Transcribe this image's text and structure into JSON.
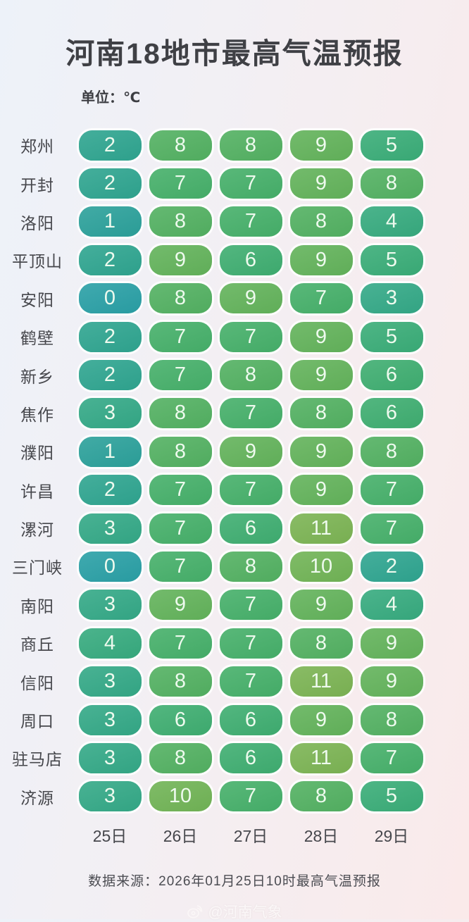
{
  "header": {
    "title": "河南18地市最高气温预报",
    "unit_label": "单位：℃"
  },
  "chart_data": {
    "type": "heatmap",
    "title": "河南18地市最高气温预报",
    "unit": "℃",
    "columns": [
      "25日",
      "26日",
      "27日",
      "28日",
      "29日"
    ],
    "rows": [
      {
        "city": "郑州",
        "values": [
          2,
          8,
          8,
          9,
          5
        ]
      },
      {
        "city": "开封",
        "values": [
          2,
          7,
          7,
          9,
          8
        ]
      },
      {
        "city": "洛阳",
        "values": [
          1,
          8,
          7,
          8,
          4
        ]
      },
      {
        "city": "平顶山",
        "values": [
          2,
          9,
          6,
          9,
          5
        ]
      },
      {
        "city": "安阳",
        "values": [
          0,
          8,
          9,
          7,
          3
        ]
      },
      {
        "city": "鹤壁",
        "values": [
          2,
          7,
          7,
          9,
          5
        ]
      },
      {
        "city": "新乡",
        "values": [
          2,
          7,
          8,
          9,
          6
        ]
      },
      {
        "city": "焦作",
        "values": [
          3,
          8,
          7,
          8,
          6
        ]
      },
      {
        "city": "濮阳",
        "values": [
          1,
          8,
          9,
          9,
          8
        ]
      },
      {
        "city": "许昌",
        "values": [
          2,
          7,
          7,
          9,
          7
        ]
      },
      {
        "city": "漯河",
        "values": [
          3,
          7,
          6,
          11,
          7
        ]
      },
      {
        "city": "三门峡",
        "values": [
          0,
          7,
          8,
          10,
          2
        ]
      },
      {
        "city": "南阳",
        "values": [
          3,
          9,
          7,
          9,
          4
        ]
      },
      {
        "city": "商丘",
        "values": [
          4,
          7,
          7,
          8,
          9
        ]
      },
      {
        "city": "信阳",
        "values": [
          3,
          8,
          7,
          11,
          9
        ]
      },
      {
        "city": "周口",
        "values": [
          3,
          6,
          6,
          9,
          8
        ]
      },
      {
        "city": "驻马店",
        "values": [
          3,
          8,
          6,
          11,
          7
        ]
      },
      {
        "city": "济源",
        "values": [
          3,
          10,
          7,
          8,
          5
        ]
      }
    ],
    "value_range": [
      0,
      11
    ],
    "legend": "none",
    "grid": "off"
  },
  "footer": {
    "source_note": "数据来源：2026年01月25日10时最高气温预报",
    "watermark_text": "@河南气象"
  },
  "colors": {
    "background_left": "#edf2f9",
    "background_right": "#faeaea",
    "title_text": "#3f4045",
    "label_text": "#46474c",
    "cell_text": "#eefaee",
    "temp_scale": {
      "0": "#2aa0a6",
      "1": "#2ca19b",
      "2": "#2fa590",
      "3": "#34a987",
      "4": "#37ab7f",
      "5": "#3aad78",
      "6": "#3fae71",
      "7": "#46b06a",
      "8": "#53b162",
      "9": "#63b35b",
      "10": "#71b456",
      "11": "#7cb454"
    }
  }
}
